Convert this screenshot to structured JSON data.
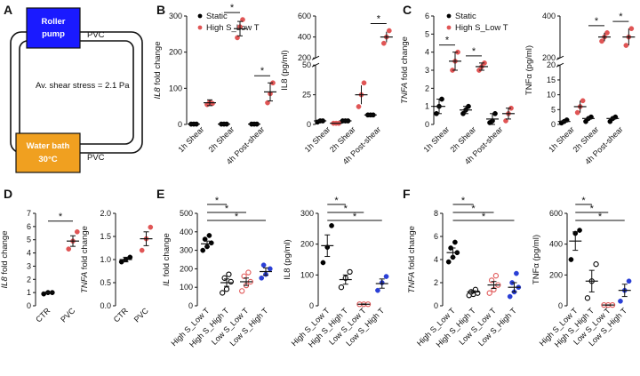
{
  "panels": {
    "A": {
      "letter": "A",
      "pump_label": [
        "Roller",
        "pump"
      ],
      "bath_label": [
        "Water bath",
        "30°C"
      ],
      "tube_label_top": "PVC",
      "tube_label_bottom": "PVC",
      "shear_text": "Av. shear stress = 2.1 Pa",
      "colors": {
        "pump": "#1a1aff",
        "bath": "#f0a020"
      }
    },
    "B": {
      "letter": "B"
    },
    "C": {
      "letter": "C"
    },
    "D": {
      "letter": "D"
    },
    "E": {
      "letter": "E"
    },
    "F": {
      "letter": "F"
    }
  },
  "legend": {
    "static": "Static",
    "high": "High S_Low T"
  },
  "colors": {
    "static": "#000000",
    "high": "#e05555",
    "blue": "#2a3fd6",
    "grey": "#777777"
  },
  "chart_data": [
    {
      "id": "B1",
      "type": "scatter",
      "ylabel_italic": "IL8",
      "ylabel_rest": " fold change",
      "categories": [
        "1h Shear",
        "2h Shear",
        "4h Post-shear"
      ],
      "ylim": [
        0,
        300
      ],
      "yticks": [
        0,
        100,
        200,
        300
      ],
      "series": [
        {
          "name": "Static",
          "means": [
            1,
            1,
            1
          ],
          "sem": [
            0,
            0,
            0
          ],
          "points": [
            [
              1,
              1,
              1
            ],
            [
              1,
              1,
              1
            ],
            [
              1,
              1,
              1
            ]
          ]
        },
        {
          "name": "High S_Low T",
          "means": [
            60,
            265,
            90
          ],
          "sem": [
            8,
            20,
            25
          ],
          "points": [
            [
              55,
              62,
              58
            ],
            [
              240,
              270,
              290
            ],
            [
              60,
              85,
              115
            ]
          ]
        }
      ],
      "significance": [
        "",
        "*",
        "*"
      ]
    },
    {
      "id": "B2",
      "type": "scatter",
      "ylabel": "IL8 (pg/ml)",
      "broken_axis": true,
      "categories": [
        "1h Shear",
        "2h Shear",
        "4h Post-shear"
      ],
      "yticks_upper": [
        200,
        400,
        600
      ],
      "yticks_lower": [
        0,
        25,
        50
      ],
      "series": [
        {
          "name": "Static",
          "means": [
            3,
            3,
            8
          ],
          "sem": [
            0,
            0,
            0
          ],
          "points": [
            [
              2,
              3,
              3
            ],
            [
              3,
              3,
              3
            ],
            [
              8,
              8,
              8
            ]
          ]
        },
        {
          "name": "High S_Low T",
          "means": [
            1,
            25,
            400
          ],
          "sem": [
            0,
            8,
            50
          ],
          "points": [
            [
              1,
              1,
              1
            ],
            [
              15,
              25,
              35
            ],
            [
              340,
              400,
              460
            ]
          ]
        }
      ],
      "significance": [
        "",
        "",
        "*"
      ]
    },
    {
      "id": "C1",
      "type": "scatter",
      "ylabel_italic": "TNFA",
      "ylabel_rest": " fold change",
      "categories": [
        "1h Shear",
        "2h Shear",
        "4h Post-shear"
      ],
      "ylim": [
        0,
        6
      ],
      "yticks": [
        0,
        1,
        2,
        3,
        4,
        5,
        6
      ],
      "series": [
        {
          "name": "Static",
          "means": [
            1,
            0.8,
            0.3
          ],
          "sem": [
            0.4,
            0.2,
            0.3
          ],
          "points": [
            [
              0.6,
              1.0,
              1.4
            ],
            [
              0.6,
              0.8,
              1.0
            ],
            [
              0.1,
              0.2,
              0.6
            ]
          ]
        },
        {
          "name": "High S_Low T",
          "means": [
            3.5,
            3.2,
            0.6
          ],
          "sem": [
            0.5,
            0.2,
            0.3
          ],
          "points": [
            [
              3.0,
              3.5,
              4.0
            ],
            [
              3.0,
              3.2,
              3.4
            ],
            [
              0.2,
              0.6,
              0.9
            ]
          ]
        }
      ],
      "significance": [
        "*",
        "*",
        ""
      ]
    },
    {
      "id": "C2",
      "type": "scatter",
      "ylabel": "TNFα (pg/ml)",
      "broken_axis": true,
      "categories": [
        "1h Shear",
        "2h Shear",
        "4h Post-shear"
      ],
      "yticks_upper": [
        200,
        400
      ],
      "yticks_lower": [
        0,
        5,
        10,
        15,
        20
      ],
      "series": [
        {
          "name": "Static",
          "means": [
            1,
            2,
            2
          ],
          "sem": [
            0.5,
            0.5,
            0.5
          ],
          "points": [
            [
              0.5,
              1,
              1.5
            ],
            [
              1,
              2,
              2.5
            ],
            [
              1,
              2,
              2.5
            ]
          ]
        },
        {
          "name": "High S_Low T",
          "means": [
            6,
            300,
            300
          ],
          "sem": [
            2,
            20,
            40
          ],
          "points": [
            [
              4,
              6,
              8
            ],
            [
              280,
              300,
              320
            ],
            [
              260,
              300,
              340
            ]
          ]
        }
      ],
      "significance": [
        "",
        "*",
        "*"
      ]
    },
    {
      "id": "D1",
      "type": "scatter",
      "ylabel_italic": "IL8",
      "ylabel_rest": " fold change",
      "categories": [
        "CTR",
        "PVC"
      ],
      "ylim": [
        0,
        7
      ],
      "yticks": [
        0,
        1,
        2,
        3,
        4,
        5,
        6,
        7
      ],
      "points": [
        [
          0.9,
          1.0,
          1.0
        ],
        [
          4.3,
          4.9,
          5.6
        ]
      ],
      "means": [
        1.0,
        4.9
      ],
      "sem": [
        0.05,
        0.4
      ],
      "point_colors": [
        "#000000",
        "#e05555"
      ],
      "significance": "*"
    },
    {
      "id": "D2",
      "type": "scatter",
      "ylabel_italic": "TNFA",
      "ylabel_rest": " fold change",
      "categories": [
        "CTR",
        "PVC"
      ],
      "ylim": [
        0,
        2.0
      ],
      "yticks": [
        0,
        0.5,
        1.0,
        1.5,
        2.0
      ],
      "points": [
        [
          0.95,
          1.0,
          1.05
        ],
        [
          1.2,
          1.45,
          1.7
        ]
      ],
      "means": [
        1.0,
        1.45
      ],
      "sem": [
        0.05,
        0.15
      ],
      "point_colors": [
        "#000000",
        "#e05555"
      ],
      "significance": ""
    },
    {
      "id": "E1",
      "type": "scatter",
      "ylabel_italic": "IL",
      "ylabel_rest": " fold change",
      "categories": [
        "High S_Low T",
        "High S_High T",
        "Low S_Low T",
        "Low S_High T"
      ],
      "ylim": [
        0,
        500
      ],
      "yticks": [
        0,
        100,
        200,
        300,
        400,
        500
      ],
      "points": [
        [
          300,
          320,
          340,
          360,
          380
        ],
        [
          70,
          90,
          130,
          150,
          170
        ],
        [
          80,
          110,
          130,
          160,
          180
        ],
        [
          150,
          170,
          200,
          220
        ]
      ],
      "means": [
        335,
        125,
        130,
        185
      ],
      "sem": [
        15,
        20,
        20,
        20
      ],
      "point_colors": [
        "#000000",
        "#000000",
        "#e05555",
        "#2a3fd6"
      ],
      "hollow": [
        false,
        true,
        true,
        false
      ],
      "significance_pairs": [
        [
          0,
          1
        ],
        [
          0,
          2
        ],
        [
          0,
          3
        ]
      ]
    },
    {
      "id": "E2",
      "type": "scatter",
      "ylabel": "IL8 (pg/ml)",
      "categories": [
        "High S_Low T",
        "High S_High T",
        "Low S_Low T",
        "Low S_High T"
      ],
      "ylim": [
        0,
        300
      ],
      "yticks": [
        0,
        100,
        200,
        300
      ],
      "points": [
        [
          140,
          190,
          260
        ],
        [
          60,
          90,
          110
        ],
        [
          5,
          5,
          5
        ],
        [
          50,
          75,
          95
        ]
      ],
      "means": [
        195,
        85,
        5,
        72
      ],
      "sem": [
        35,
        15,
        1,
        15
      ],
      "point_colors": [
        "#000000",
        "#000000",
        "#e05555",
        "#2a3fd6"
      ],
      "hollow": [
        false,
        true,
        true,
        false
      ],
      "significance_pairs": [
        [
          0,
          1
        ],
        [
          0,
          2
        ],
        [
          0,
          3
        ]
      ]
    },
    {
      "id": "F1",
      "type": "scatter",
      "ylabel_italic": "TNFA",
      "ylabel_rest": " fold change",
      "categories": [
        "High S_Low T",
        "High S_High T",
        "Low S_Low T",
        "Low S_High T"
      ],
      "ylim": [
        0,
        8
      ],
      "yticks": [
        0,
        2,
        4,
        6,
        8
      ],
      "points": [
        [
          3.8,
          4.2,
          4.6,
          5.0,
          5.5
        ],
        [
          0.9,
          1.0,
          1.1,
          1.2,
          1.4
        ],
        [
          1.1,
          1.4,
          1.8,
          2.2,
          2.6
        ],
        [
          0.8,
          1.2,
          1.6,
          2.0,
          2.8
        ]
      ],
      "means": [
        4.6,
        1.2,
        1.8,
        1.6
      ],
      "sem": [
        0.4,
        0.1,
        0.3,
        0.4
      ],
      "point_colors": [
        "#000000",
        "#000000",
        "#e05555",
        "#2a3fd6"
      ],
      "hollow": [
        false,
        true,
        true,
        false
      ],
      "significance_pairs": [
        [
          0,
          1
        ],
        [
          0,
          2
        ],
        [
          0,
          3
        ]
      ]
    },
    {
      "id": "F2",
      "type": "scatter",
      "ylabel": "TNFα (pg/ml)",
      "categories": [
        "High S_Low T",
        "High S_High T",
        "Low S_Low T",
        "Low S_High T"
      ],
      "ylim": [
        0,
        600
      ],
      "yticks": [
        0,
        200,
        400,
        600
      ],
      "points": [
        [
          300,
          470,
          490
        ],
        [
          50,
          160,
          270
        ],
        [
          5,
          5,
          5
        ],
        [
          30,
          100,
          160
        ]
      ],
      "means": [
        420,
        160,
        5,
        100
      ],
      "sem": [
        60,
        70,
        1,
        40
      ],
      "point_colors": [
        "#000000",
        "#000000",
        "#e05555",
        "#2a3fd6"
      ],
      "hollow": [
        false,
        true,
        true,
        false
      ],
      "significance_pairs": [
        [
          0,
          1
        ],
        [
          0,
          2
        ],
        [
          0,
          3
        ]
      ]
    }
  ]
}
